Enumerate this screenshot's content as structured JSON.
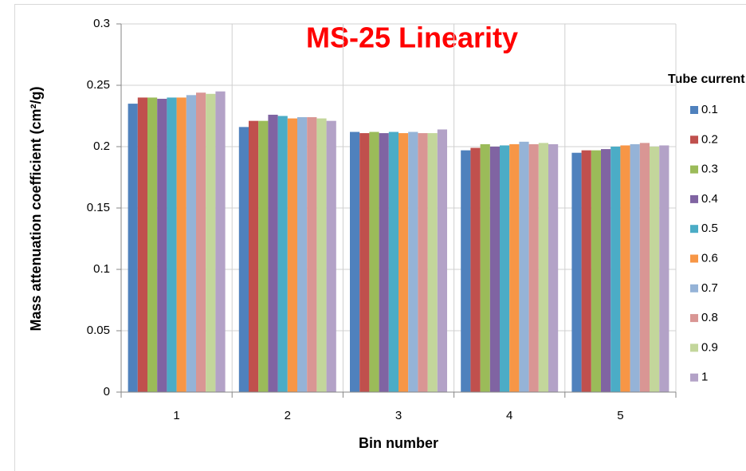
{
  "chart_data": {
    "type": "bar",
    "title": "MS-25 Linearity",
    "x_label": "Bin number",
    "y_label": "Mass attenuation coefficient (cm²/g)",
    "legend_title": "Tube current (mA)",
    "legend_position": "right",
    "grid": true,
    "categories": [
      "1",
      "2",
      "3",
      "4",
      "5"
    ],
    "ylim": [
      0,
      0.3
    ],
    "yticks": [
      0,
      0.05,
      0.1,
      0.15,
      0.2,
      0.25,
      0.3
    ],
    "series": [
      {
        "name": "0.1",
        "color": "#4F81BD",
        "values": [
          0.235,
          0.216,
          0.212,
          0.197,
          0.195
        ]
      },
      {
        "name": "0.2",
        "color": "#C0504D",
        "values": [
          0.24,
          0.221,
          0.211,
          0.199,
          0.197
        ]
      },
      {
        "name": "0.3",
        "color": "#9BBB59",
        "values": [
          0.24,
          0.221,
          0.212,
          0.202,
          0.197
        ]
      },
      {
        "name": "0.4",
        "color": "#8064A2",
        "values": [
          0.239,
          0.226,
          0.211,
          0.2,
          0.198
        ]
      },
      {
        "name": "0.5",
        "color": "#4BACC6",
        "values": [
          0.24,
          0.225,
          0.212,
          0.201,
          0.2
        ]
      },
      {
        "name": "0.6",
        "color": "#F79646",
        "values": [
          0.24,
          0.223,
          0.211,
          0.202,
          0.201
        ]
      },
      {
        "name": "0.7",
        "color": "#95B3D7",
        "values": [
          0.242,
          0.224,
          0.212,
          0.204,
          0.202
        ]
      },
      {
        "name": "0.8",
        "color": "#D99694",
        "values": [
          0.244,
          0.224,
          0.211,
          0.202,
          0.203
        ]
      },
      {
        "name": "0.9",
        "color": "#C3D69B",
        "values": [
          0.243,
          0.223,
          0.211,
          0.203,
          0.2
        ]
      },
      {
        "name": "1",
        "color": "#B3A2C7",
        "values": [
          0.245,
          0.221,
          0.214,
          0.202,
          0.201
        ]
      }
    ]
  }
}
